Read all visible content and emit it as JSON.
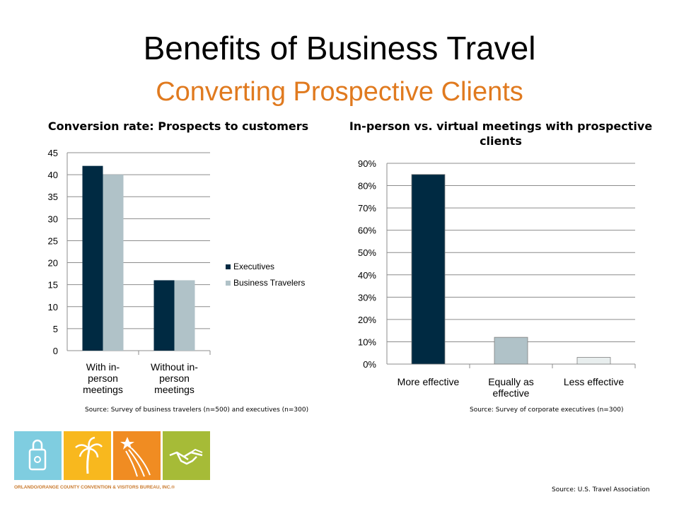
{
  "slide": {
    "title": "Benefits of Business Travel",
    "subtitle": "Converting Prospective Clients",
    "subtitle_color": "#e07a1f",
    "footer_source": "Source:  U.S. Travel Association"
  },
  "logo": {
    "organization": "ORLANDO/ORANGE COUNTY CONVENTION & VISITORS BUREAU, INC.®",
    "tile_colors": [
      "#7fcde0",
      "#f8b81e",
      "#f08c22",
      "#a6bb37"
    ],
    "tile_icons": [
      "shopping-bag-icon",
      "palm-tree-icon",
      "shooting-star-icon",
      "handshake-icon"
    ]
  },
  "chart_data": [
    {
      "type": "bar",
      "title": "Conversion rate: Prospects to customers",
      "categories": [
        [
          "With in-",
          "person",
          "meetings"
        ],
        [
          "Without in-",
          "person",
          "meetings"
        ]
      ],
      "series": [
        {
          "name": "Executives",
          "values": [
            42,
            16
          ],
          "color": "#002a42"
        },
        {
          "name": "Business Travelers",
          "values": [
            40,
            16
          ],
          "color": "#b0c2c8"
        }
      ],
      "ylim": [
        0,
        45
      ],
      "yticks": [
        "0",
        "5",
        "10",
        "15",
        "20",
        "25",
        "30",
        "35",
        "40",
        "45"
      ],
      "grid": true,
      "legend": "right",
      "source": "Source: Survey of business travelers (n=500) and executives (n=300)"
    },
    {
      "type": "bar",
      "title": "In-person vs. virtual meetings with prospective clients",
      "categories": [
        [
          "More effective"
        ],
        [
          "Equally as",
          "effective"
        ],
        [
          "Less effective"
        ]
      ],
      "values": [
        0.85,
        0.12,
        0.03
      ],
      "bar_colors": [
        "#002a42",
        "#b0c2c8",
        "#e8eeee"
      ],
      "ylim": [
        0,
        0.9
      ],
      "yticks": [
        "0%",
        "10%",
        "20%",
        "30%",
        "40%",
        "50%",
        "60%",
        "70%",
        "80%",
        "90%"
      ],
      "grid": true,
      "legend": "none",
      "source": "Source: Survey of corporate executives (n=300)"
    }
  ]
}
